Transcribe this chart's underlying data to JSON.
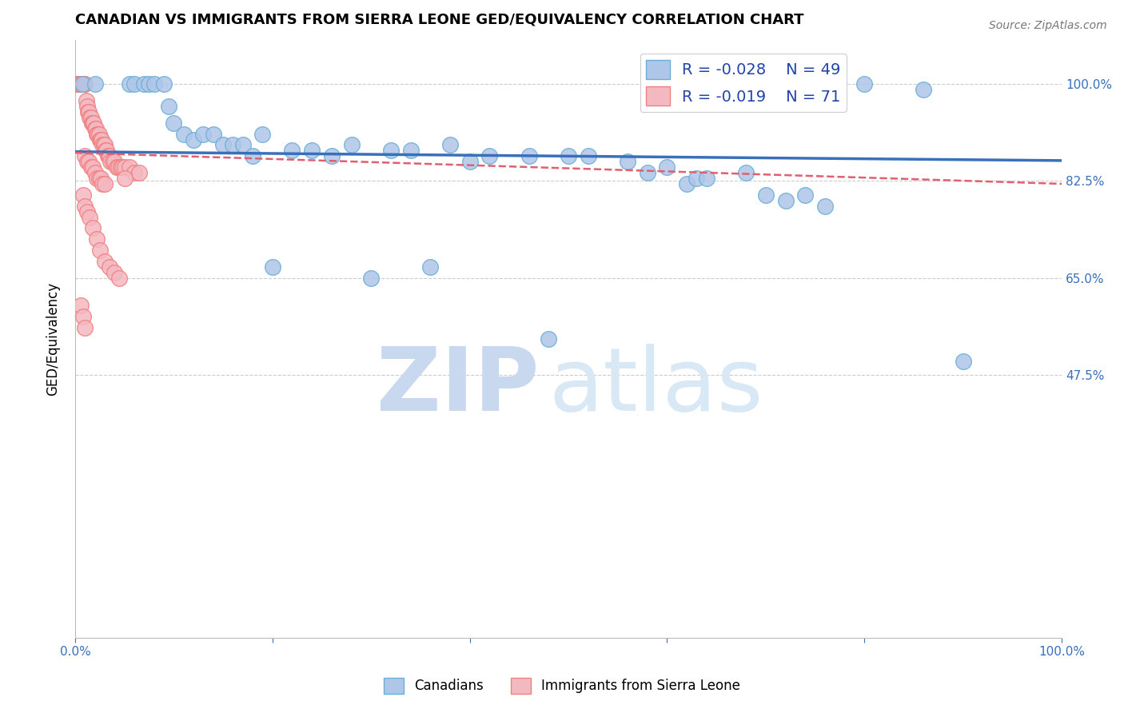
{
  "title": "CANADIAN VS IMMIGRANTS FROM SIERRA LEONE GED/EQUIVALENCY CORRELATION CHART",
  "source": "Source: ZipAtlas.com",
  "ylabel": "GED/Equivalency",
  "xlabel": "",
  "xlim": [
    0.0,
    1.0
  ],
  "ylim": [
    0.0,
    1.08
  ],
  "ytick_positions": [
    1.0,
    0.825,
    0.65,
    0.475
  ],
  "ytick_labels": [
    "100.0%",
    "82.5%",
    "65.0%",
    "47.5%"
  ],
  "grid_color": "#cccccc",
  "canadian_color": "#aec6e8",
  "canadian_edge": "#6baed6",
  "sierra_leone_color": "#f4b8c1",
  "sierra_leone_edge": "#f08080",
  "trend_canadian_color": "#3a6fba",
  "trend_sierra_color": "#e06070",
  "legend_R_canadian": "-0.028",
  "legend_N_canadian": "49",
  "legend_R_sierra": "-0.019",
  "legend_N_sierra": "71",
  "watermark_zip": "ZIP",
  "watermark_atlas": "atlas",
  "watermark_color": "#dce9f7",
  "canadian_x": [
    0.007,
    0.02,
    0.055,
    0.06,
    0.07,
    0.075,
    0.08,
    0.09,
    0.095,
    0.1,
    0.11,
    0.12,
    0.13,
    0.14,
    0.15,
    0.16,
    0.17,
    0.18,
    0.19,
    0.22,
    0.24,
    0.26,
    0.28,
    0.32,
    0.34,
    0.38,
    0.4,
    0.42,
    0.46,
    0.5,
    0.52,
    0.56,
    0.58,
    0.6,
    0.62,
    0.63,
    0.64,
    0.68,
    0.7,
    0.72,
    0.74,
    0.76,
    0.8,
    0.86,
    0.9,
    0.48,
    0.36,
    0.3,
    0.2
  ],
  "canadian_y": [
    1.0,
    1.0,
    1.0,
    1.0,
    1.0,
    1.0,
    1.0,
    1.0,
    0.96,
    0.93,
    0.91,
    0.9,
    0.91,
    0.91,
    0.89,
    0.89,
    0.89,
    0.87,
    0.91,
    0.88,
    0.88,
    0.87,
    0.89,
    0.88,
    0.88,
    0.89,
    0.86,
    0.87,
    0.87,
    0.87,
    0.87,
    0.86,
    0.84,
    0.85,
    0.82,
    0.83,
    0.83,
    0.84,
    0.8,
    0.79,
    0.8,
    0.78,
    1.0,
    0.99,
    0.5,
    0.54,
    0.67,
    0.65,
    0.67
  ],
  "sierra_x": [
    0.002,
    0.003,
    0.004,
    0.005,
    0.006,
    0.007,
    0.008,
    0.009,
    0.01,
    0.011,
    0.012,
    0.013,
    0.014,
    0.015,
    0.016,
    0.017,
    0.018,
    0.019,
    0.02,
    0.021,
    0.022,
    0.023,
    0.024,
    0.025,
    0.026,
    0.027,
    0.028,
    0.029,
    0.03,
    0.031,
    0.032,
    0.033,
    0.034,
    0.035,
    0.036,
    0.038,
    0.04,
    0.042,
    0.044,
    0.046,
    0.048,
    0.05,
    0.055,
    0.06,
    0.065,
    0.01,
    0.012,
    0.014,
    0.016,
    0.018,
    0.02,
    0.022,
    0.024,
    0.026,
    0.028,
    0.03,
    0.008,
    0.01,
    0.012,
    0.015,
    0.018,
    0.022,
    0.025,
    0.03,
    0.035,
    0.04,
    0.045,
    0.006,
    0.008,
    0.01,
    0.05
  ],
  "sierra_y": [
    1.0,
    1.0,
    1.0,
    1.0,
    1.0,
    1.0,
    1.0,
    1.0,
    1.0,
    0.97,
    0.96,
    0.95,
    0.95,
    0.94,
    0.94,
    0.93,
    0.93,
    0.93,
    0.92,
    0.92,
    0.91,
    0.91,
    0.91,
    0.9,
    0.9,
    0.9,
    0.89,
    0.89,
    0.89,
    0.88,
    0.88,
    0.87,
    0.87,
    0.87,
    0.86,
    0.86,
    0.86,
    0.85,
    0.85,
    0.85,
    0.85,
    0.85,
    0.85,
    0.84,
    0.84,
    0.87,
    0.86,
    0.86,
    0.85,
    0.85,
    0.84,
    0.83,
    0.83,
    0.83,
    0.82,
    0.82,
    0.8,
    0.78,
    0.77,
    0.76,
    0.74,
    0.72,
    0.7,
    0.68,
    0.67,
    0.66,
    0.65,
    0.6,
    0.58,
    0.56,
    0.83
  ],
  "can_trend_x0": 0.0,
  "can_trend_y0": 0.878,
  "can_trend_x1": 1.0,
  "can_trend_y1": 0.862,
  "sier_trend_x0": 0.0,
  "sier_trend_y0": 0.876,
  "sier_trend_x1": 1.0,
  "sier_trend_y1": 0.82
}
